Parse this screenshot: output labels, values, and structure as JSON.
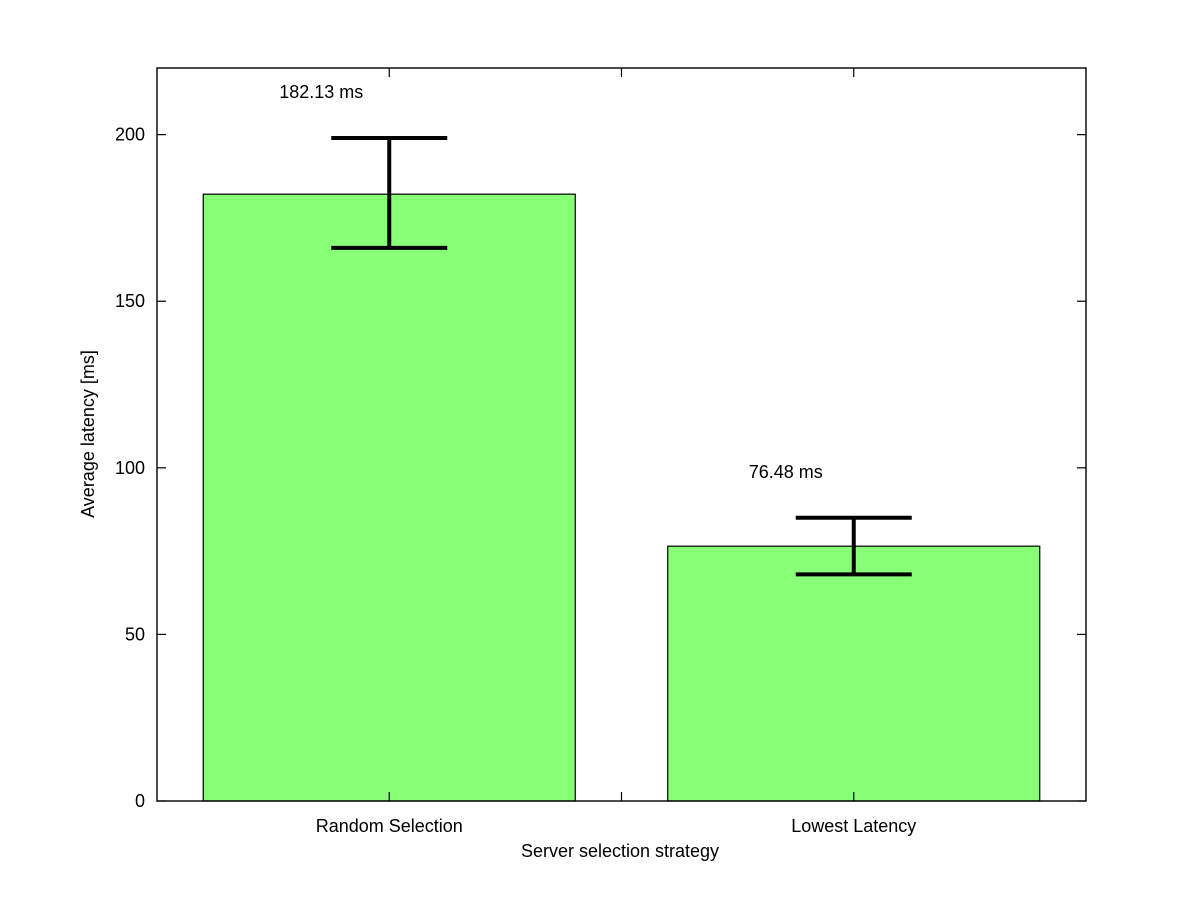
{
  "chart_data": {
    "type": "bar",
    "title": "",
    "xlabel": "Server selection strategy",
    "ylabel": "Average latency [ms]",
    "categories": [
      "Random Selection",
      "Lowest Latency"
    ],
    "values": [
      182.13,
      76.48
    ],
    "error_bars": [
      {
        "low": 166,
        "high": 199
      },
      {
        "low": 68,
        "high": 85
      }
    ],
    "data_labels": [
      "182.13 ms",
      "76.48 ms"
    ],
    "ylim": [
      0,
      220
    ],
    "yticks": [
      0,
      50,
      100,
      150,
      200
    ],
    "ytick_labels": [
      "0",
      "50",
      "100",
      "150",
      "200"
    ],
    "grid": false,
    "colors": {
      "bar_fill": "#88ff77",
      "bar_stroke": "#000000",
      "error_bar": "#000000",
      "axis": "#000000"
    }
  }
}
